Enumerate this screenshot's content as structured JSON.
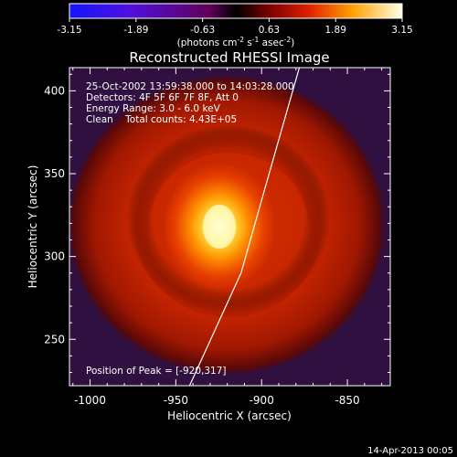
{
  "colorbar": {
    "ticks": [
      "-3.15",
      "-1.89",
      "-0.63",
      "0.63",
      "1.89",
      "3.15"
    ],
    "units_prefix": "(photons cm",
    "units_exp1": "-2",
    "units_mid": " s",
    "units_exp2": "-1",
    "units_mid2": " asec",
    "units_exp3": "-2",
    "units_suffix": ")"
  },
  "chart_data": {
    "type": "heatmap",
    "title": "Reconstructed RHESSI Image",
    "xlabel": "Heliocentric X (arcsec)",
    "ylabel": "Heliocentric Y (arcsec)",
    "xlim": [
      -1012,
      -825
    ],
    "ylim": [
      222,
      414
    ],
    "xticks": [
      "-1000",
      "-950",
      "-900",
      "-850"
    ],
    "yticks": [
      "250",
      "300",
      "350",
      "400"
    ],
    "xtick_values": [
      -1000,
      -950,
      -900,
      -850
    ],
    "ytick_values": [
      250,
      300,
      350,
      400
    ],
    "colorbar_range": [
      -3.15,
      3.15
    ],
    "peak": {
      "x": -920,
      "y": 317
    },
    "annotations": [
      "25-Oct-2002 13:59:38.000 to 14:03:28.000",
      "Detectors: 4F 5F 6F 7F 8F, Att 0",
      "Energy Range: 3.0 - 6.0 keV",
      "Clean    Total counts: 4.43E+05",
      "Position of Peak = [-920,317]"
    ],
    "limb_points": [
      [
        -942,
        222
      ],
      [
        -912,
        290
      ],
      [
        -897,
        345
      ],
      [
        -878,
        414
      ]
    ]
  },
  "timestamp": "14-Apr-2013 00:05"
}
